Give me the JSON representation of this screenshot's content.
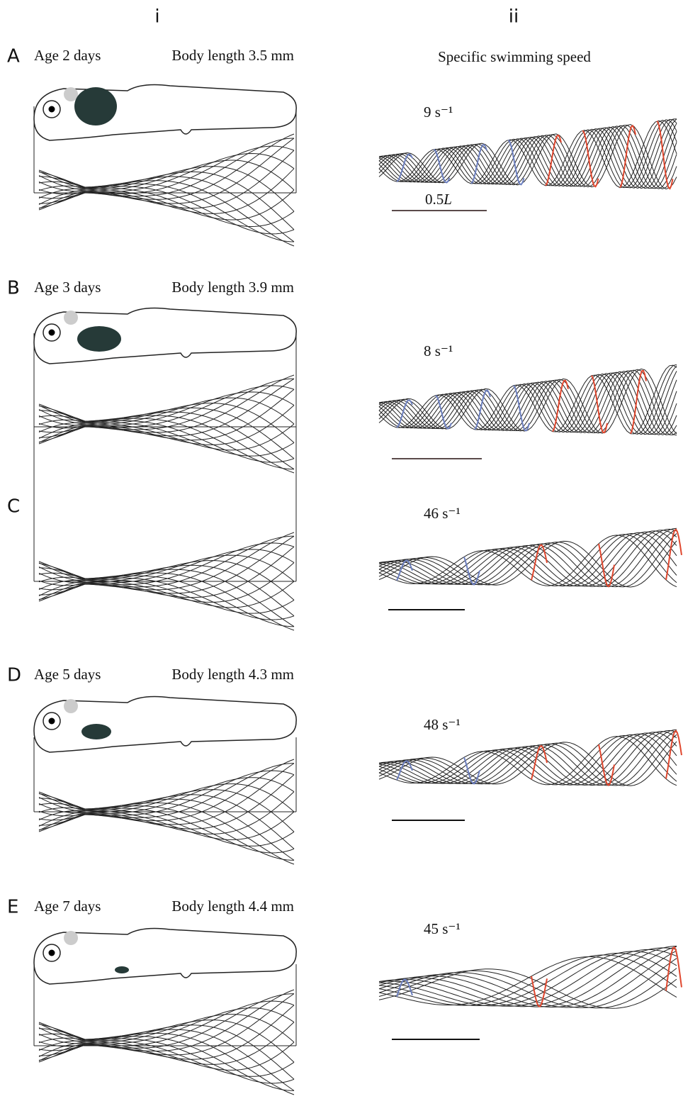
{
  "columns": [
    "i",
    "ii"
  ],
  "right_header": "Specific swimming speed",
  "panels": [
    {
      "label": "A",
      "age": "Age 2 days",
      "body_length": "Body length 3.5 mm",
      "speed": "9 s⁻¹",
      "scale_bar": {
        "number": "0.5",
        "unit": "L"
      }
    },
    {
      "label": "B",
      "age": "Age 3 days",
      "body_length": "Body length 3.9 mm",
      "speed": "8 s⁻¹"
    },
    {
      "label": "C",
      "speed": "46 s⁻¹"
    },
    {
      "label": "D",
      "age": "Age 5 days",
      "body_length": "Body length 4.3 mm",
      "speed": "48 s⁻¹"
    },
    {
      "label": "E",
      "age": "Age 7 days",
      "body_length": "Body length 4.4 mm",
      "speed": "45 s⁻¹"
    }
  ]
}
